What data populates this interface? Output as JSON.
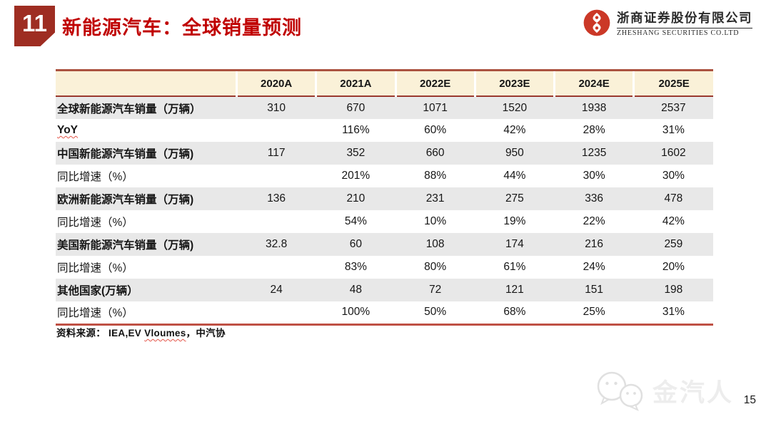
{
  "header": {
    "slide_number": "11",
    "title": "新能源汽车：全球销量预测",
    "logo": {
      "company_cn": "浙商证券股份有限公司",
      "company_en": "ZHESHANG SECURITIES CO.LTD"
    }
  },
  "table": {
    "columns": [
      "",
      "2020A",
      "2021A",
      "2022E",
      "2023E",
      "2024E",
      "2025E"
    ],
    "rows": [
      {
        "label": "全球新能源汽车销量（万辆）",
        "shaded": true,
        "bold": true,
        "wavy": false,
        "values": [
          "310",
          "670",
          "1071",
          "1520",
          "1938",
          "2537"
        ]
      },
      {
        "label": "YoY",
        "shaded": false,
        "bold": true,
        "wavy": true,
        "values": [
          "",
          "116%",
          "60%",
          "42%",
          "28%",
          "31%"
        ]
      },
      {
        "label": "中国新能源汽车销量（万辆)",
        "shaded": true,
        "bold": true,
        "wavy": false,
        "values": [
          "117",
          "352",
          "660",
          "950",
          "1235",
          "1602"
        ]
      },
      {
        "label": "同比增速（%）",
        "shaded": false,
        "bold": false,
        "wavy": false,
        "values": [
          "",
          "201%",
          "88%",
          "44%",
          "30%",
          "30%"
        ]
      },
      {
        "label": "欧洲新能源汽车销量（万辆)",
        "shaded": true,
        "bold": true,
        "wavy": false,
        "values": [
          "136",
          "210",
          "231",
          "275",
          "336",
          "478"
        ]
      },
      {
        "label": "同比增速（%）",
        "shaded": false,
        "bold": false,
        "wavy": false,
        "values": [
          "",
          "54%",
          "10%",
          "19%",
          "22%",
          "42%"
        ]
      },
      {
        "label": "美国新能源汽车销量（万辆)",
        "shaded": true,
        "bold": true,
        "wavy": false,
        "values": [
          "32.8",
          "60",
          "108",
          "174",
          "216",
          "259"
        ]
      },
      {
        "label": "同比增速（%）",
        "shaded": false,
        "bold": false,
        "wavy": false,
        "values": [
          "",
          "83%",
          "80%",
          "61%",
          "24%",
          "20%"
        ]
      },
      {
        "label": "其他国家(万辆）",
        "shaded": true,
        "bold": true,
        "wavy": false,
        "values": [
          "24",
          "48",
          "72",
          "121",
          "151",
          "198"
        ]
      },
      {
        "label": "同比增速（%）",
        "shaded": false,
        "bold": false,
        "wavy": false,
        "values": [
          "",
          "100%",
          "50%",
          "68%",
          "25%",
          "31%"
        ]
      }
    ]
  },
  "source": {
    "prefix": "资料来源： IEA,EV ",
    "wavy_word": "Vloumes",
    "suffix": "，中汽协"
  },
  "watermark": {
    "text": "金汽人",
    "icon": "wechat-icon"
  },
  "page": {
    "number": "15"
  },
  "colors": {
    "accent_red": "#c00000",
    "badge_red": "#9e2d22",
    "table_border_red": "#9a382e",
    "table_bottom_red": "#bf5044",
    "header_cream": "#faf1d8",
    "row_gray": "#e8e8e8",
    "logo_red": "#cb3827",
    "watermark_gray": "#ededed"
  }
}
